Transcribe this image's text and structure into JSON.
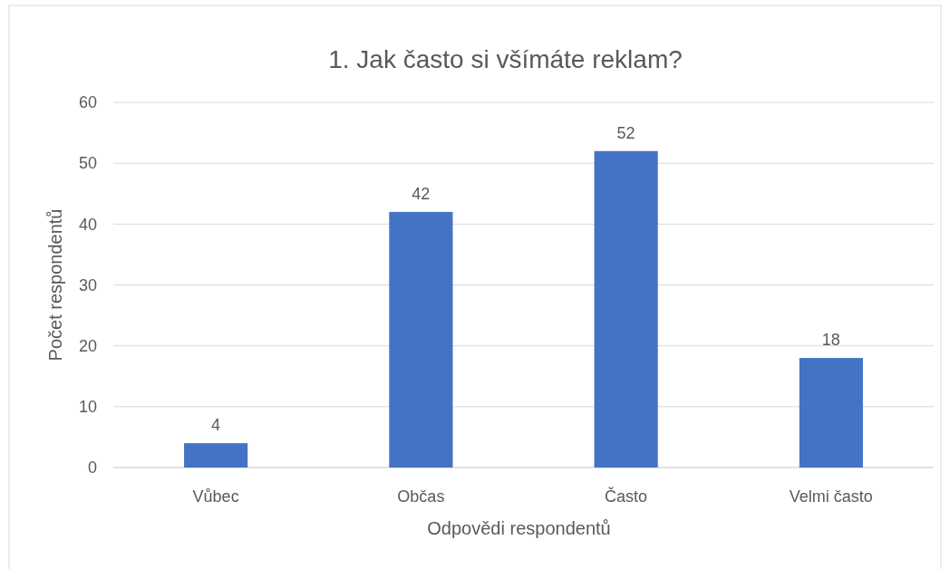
{
  "chart_data": {
    "type": "bar",
    "title": "1. Jak často si všímáte reklam?",
    "xlabel": "Odpovědi respondentů",
    "ylabel": "Počet respondentů",
    "categories": [
      "Vůbec",
      "Občas",
      "Často",
      "Velmi často"
    ],
    "values": [
      4,
      42,
      52,
      18
    ],
    "color": "#4472c4",
    "ylim": [
      0,
      60
    ],
    "yticks": [
      0,
      10,
      20,
      30,
      40,
      50,
      60
    ],
    "grid": "y",
    "data_labels": true
  }
}
